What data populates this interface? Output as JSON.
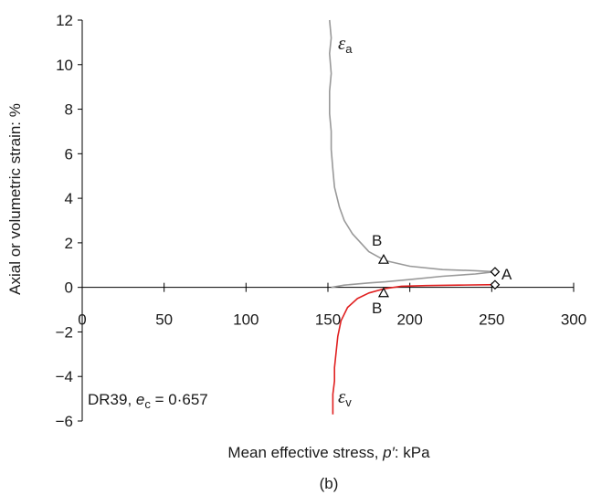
{
  "chart_data": {
    "type": "line",
    "caption": "(b)",
    "xlabel_prefix": "Mean effective stress, ",
    "xlabel_symbol": "p′",
    "xlabel_suffix": ": kPa",
    "ylabel": "Axial or volumetric strain: %",
    "xlim": [
      0,
      300
    ],
    "ylim": [
      -6,
      12
    ],
    "xticks": [
      "0",
      "50",
      "100",
      "150",
      "200",
      "250",
      "300"
    ],
    "yticks": [
      "−6",
      "−4",
      "−2",
      "0",
      "2",
      "4",
      "6",
      "8",
      "10",
      "12"
    ],
    "grid": false,
    "annotation": {
      "prefix": "DR39, ",
      "symbol": "e",
      "sub": "c",
      "suffix": " = 0·657"
    },
    "series": [
      {
        "name": "εa",
        "symbol": "ε",
        "sub": "a",
        "color": "#999999",
        "x": [
          252,
          240,
          220,
          200,
          185,
          175,
          165,
          160,
          157,
          154,
          153,
          152,
          152,
          151,
          151,
          152,
          151,
          152,
          151
        ],
        "y": [
          0.7,
          0.75,
          0.8,
          0.95,
          1.2,
          1.6,
          2.4,
          3.0,
          3.6,
          4.5,
          5.3,
          6.2,
          7.0,
          7.8,
          8.8,
          9.6,
          10.5,
          11.2,
          12.0
        ]
      },
      {
        "name": "εv",
        "symbol": "ε",
        "sub": "v",
        "color": "#e02020",
        "x": [
          252,
          230,
          210,
          195,
          185,
          175,
          168,
          162,
          158,
          156,
          155,
          154,
          154,
          153,
          153,
          153
        ],
        "y": [
          0.12,
          0.1,
          0.08,
          0.05,
          -0.05,
          -0.25,
          -0.5,
          -0.9,
          -1.5,
          -2.2,
          -2.9,
          -3.6,
          -4.2,
          -4.8,
          -5.3,
          -5.7
        ]
      },
      {
        "name": "",
        "color": "#999999",
        "x": [
          152,
          160,
          175,
          185,
          200,
          220,
          240,
          252
        ],
        "y": [
          0.0,
          0.1,
          0.2,
          0.25,
          0.35,
          0.5,
          0.6,
          0.7
        ]
      }
    ],
    "markers": [
      {
        "shape": "diamond",
        "x": 252,
        "y": 0.7,
        "label": "A"
      },
      {
        "shape": "diamond",
        "x": 252,
        "y": 0.12,
        "label": ""
      },
      {
        "shape": "triangle",
        "x": 184,
        "y": 1.25,
        "label": "B"
      },
      {
        "shape": "triangle",
        "x": 184,
        "y": -0.25,
        "label": "B"
      }
    ]
  }
}
